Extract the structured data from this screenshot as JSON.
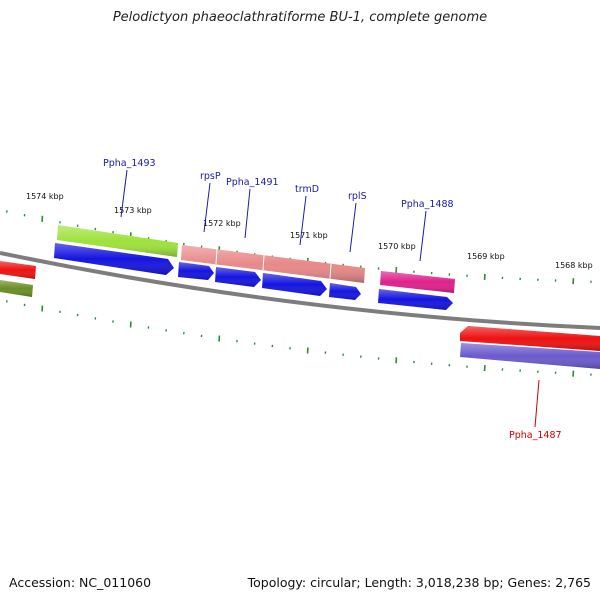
{
  "title": "Pelodictyon phaeoclathratiforme BU-1, complete genome",
  "footer": {
    "accession": "Accession: NC_011060",
    "summary": "Topology: circular; Length: 3,018,238 bp; Genes: 2,765"
  },
  "colors": {
    "backbone": "#7d7d7d",
    "tick": "#2e8b2e",
    "label_blue": "#1a1aa8",
    "label_red": "#cc0000"
  },
  "scale": {
    "unit": "kbp",
    "labels": [
      "1574 kbp",
      "1573 kbp",
      "1572 kbp",
      "1571 kbp",
      "1570 kbp",
      "1569 kbp",
      "1568 kbp"
    ]
  },
  "features": [
    {
      "kind": "gene",
      "color": "#9ee23a",
      "name": "gene-green-1493"
    },
    {
      "kind": "cds",
      "color": "#1414e0",
      "name": "cds-blue-1493"
    },
    {
      "kind": "gene",
      "color": "#e88888",
      "name": "gene-pink-1492-1489"
    },
    {
      "kind": "cds",
      "color": "#1414e0",
      "name": "cds-blue-rpsP"
    },
    {
      "kind": "cds",
      "color": "#1414e0",
      "name": "cds-blue-1491"
    },
    {
      "kind": "cds",
      "color": "#1414e0",
      "name": "cds-blue-trmD"
    },
    {
      "kind": "cds",
      "color": "#1414e0",
      "name": "cds-blue-rplS"
    },
    {
      "kind": "gene",
      "color": "#e0208c",
      "name": "gene-magenta-1488"
    },
    {
      "kind": "cds",
      "color": "#1414e0",
      "name": "cds-blue-1488"
    },
    {
      "kind": "gene",
      "color": "#ee1111",
      "name": "gene-red-1487"
    },
    {
      "kind": "cds",
      "color": "#6a5acd",
      "name": "cds-purple-1487"
    },
    {
      "kind": "gene",
      "color": "#ee1111",
      "name": "gene-red-left"
    },
    {
      "kind": "cds",
      "color": "#6b8e23",
      "name": "cds-olive-left"
    }
  ],
  "labels": [
    {
      "text": "Ppha_1493",
      "color": "blue"
    },
    {
      "text": "rpsP",
      "color": "blue"
    },
    {
      "text": "Ppha_1491",
      "color": "blue"
    },
    {
      "text": "trmD",
      "color": "blue"
    },
    {
      "text": "rplS",
      "color": "blue"
    },
    {
      "text": "Ppha_1488",
      "color": "blue"
    },
    {
      "text": "Ppha_1487",
      "color": "red"
    }
  ]
}
